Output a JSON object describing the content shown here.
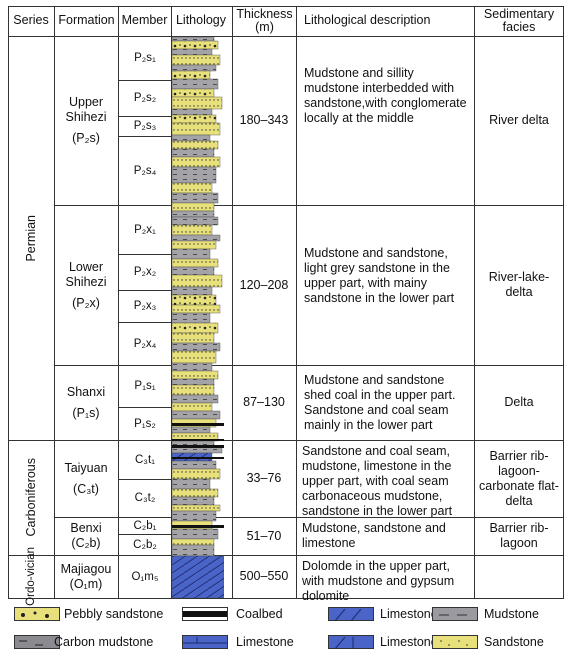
{
  "headers": {
    "series": "Series",
    "formation": "Formation",
    "member": "Member",
    "lithology": "Lithology",
    "thickness": "Thickness (m)",
    "description": "Lithological description",
    "facies": "Sedimentary facies"
  },
  "series": {
    "permian": "Permian",
    "carboniferous": "Carboniferous",
    "ordovician": "Ordo-vician"
  },
  "formations": [
    {
      "name_line1": "Upper",
      "name_line2": "Shihezi",
      "code": "(P₂s)",
      "members": [
        "P₂s₁",
        "P₂s₂",
        "P₂s₃",
        "P₂s₄"
      ],
      "thickness": "180–343",
      "description": "Mudstone and sillity mudstone interbedded with sandstone,with conglomerate locally at the middle",
      "facies": "River delta"
    },
    {
      "name_line1": "Lower",
      "name_line2": "Shihezi",
      "code": "(P₂x)",
      "members": [
        "P₂x₁",
        "P₂x₂",
        "P₂x₃",
        "P₂x₄"
      ],
      "thickness": "120–208",
      "description": "Mudstone and sandstone, light grey sandstone in the upper part, with mainy sandstone in the lower part",
      "facies": "River-lake-delta"
    },
    {
      "name_line1": "Shanxi",
      "name_line2": "",
      "code": "(P₁s)",
      "members": [
        "P₁s₁",
        "P₁s₂"
      ],
      "thickness": "87–130",
      "description": "Mudstone and sandstone shed coal in the upper part. Sandstone and coal seam mainly in the lower part",
      "facies": "Delta"
    },
    {
      "name_line1": "Taiyuan",
      "name_line2": "",
      "code": "(C₃t)",
      "members": [
        "C₃t₁",
        "C₃t₂"
      ],
      "thickness": "33–76",
      "description": "Sandstone and coal seam, mudstone, limestone in the upper part, with coal seam carbonaceous mudstone, sandstone in the lower part",
      "facies": "Barrier rib-lagoon-carbonate flat-delta"
    },
    {
      "name_line1": "Benxi",
      "name_line2": "",
      "code": "(C₂b)",
      "members": [
        "C₂b₁",
        "C₂b₂"
      ],
      "thickness": "51–70",
      "description": "Mudstone, sandstone and limestone",
      "facies": "Barrier rib-lagoon"
    },
    {
      "name_line1": "Majiagou",
      "name_line2": "",
      "code": "(O₁m)",
      "members": [
        "O₁m₅"
      ],
      "thickness": "500–550",
      "description": "Dolomde in the upper part, with mudstone and gypsum dolomite",
      "facies": ""
    }
  ],
  "legend": [
    {
      "label": "Pebbly sandstone",
      "icon": "pebbly-sandstone-swatch",
      "color": "#e8e07a"
    },
    {
      "label": "Coalbed",
      "icon": "coalbed-swatch",
      "color": "#111111"
    },
    {
      "label": "Limestone",
      "icon": "limestone-diagonal-swatch",
      "color": "#4a64c8"
    },
    {
      "label": "Mudstone",
      "icon": "mudstone-swatch",
      "color": "#9a9aa0"
    },
    {
      "label": "Carbon mudstone",
      "icon": "carbon-mudstone-swatch",
      "color": "#8a8a90"
    },
    {
      "label": "Limestone",
      "icon": "limestone-brick-swatch",
      "color": "#4a64c8"
    },
    {
      "label": "Limestone",
      "icon": "limestone-cross-swatch",
      "color": "#4a64c8"
    },
    {
      "label": "Sandstone",
      "icon": "sandstone-swatch",
      "color": "#e8e07a"
    }
  ]
}
